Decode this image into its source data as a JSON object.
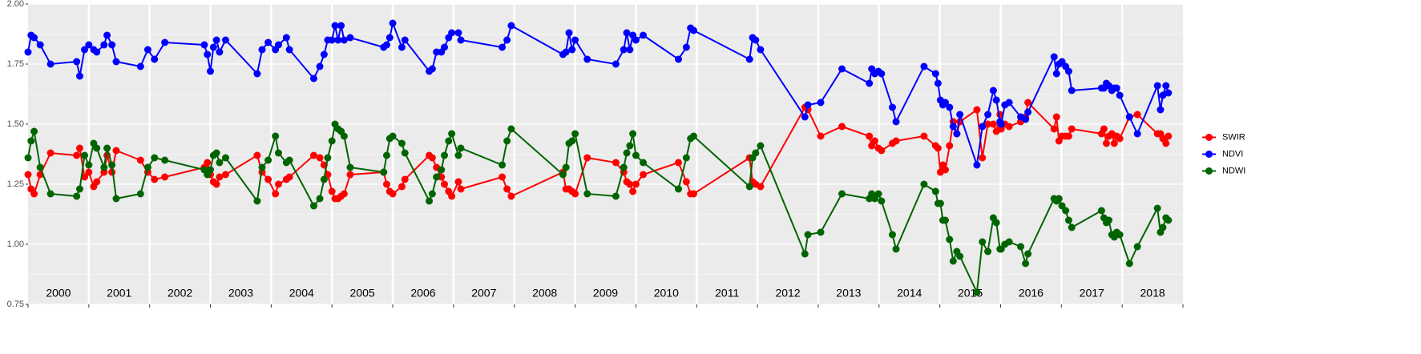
{
  "chart_data": {
    "type": "line",
    "x": [
      2000.0,
      2000.05,
      2000.1,
      2000.2,
      2000.37,
      2000.8,
      2000.85,
      2000.93,
      2001.0,
      2001.08,
      2001.13,
      2001.25,
      2001.3,
      2001.38,
      2001.45,
      2001.85,
      2001.97,
      2002.08,
      2002.25,
      2002.9,
      2002.95,
      2003.0,
      2003.05,
      2003.1,
      2003.15,
      2003.25,
      2003.77,
      2003.85,
      2003.95,
      2004.07,
      2004.12,
      2004.25,
      2004.3,
      2004.7,
      2004.8,
      2004.87,
      2004.93,
      2005.0,
      2005.05,
      2005.1,
      2005.15,
      2005.2,
      2005.3,
      2005.85,
      2005.9,
      2005.95,
      2006.0,
      2006.15,
      2006.2,
      2006.6,
      2006.65,
      2006.72,
      2006.8,
      2006.85,
      2006.92,
      2006.97,
      2007.08,
      2007.12,
      2007.8,
      2007.88,
      2007.95,
      2008.8,
      2008.85,
      2008.9,
      2008.95,
      2009.0,
      2009.2,
      2009.67,
      2009.8,
      2009.85,
      2009.9,
      2009.95,
      2010.0,
      2010.12,
      2010.7,
      2010.83,
      2010.9,
      2010.95,
      2011.87,
      2011.92,
      2011.97,
      2012.05,
      2012.78,
      2012.83,
      2013.04,
      2013.39,
      2013.84,
      2013.88,
      2013.93,
      2013.99,
      2014.04,
      2014.22,
      2014.28,
      2014.74,
      2014.93,
      2014.97,
      2015.01,
      2015.05,
      2015.09,
      2015.16,
      2015.22,
      2015.28,
      2015.33,
      2015.61,
      2015.7,
      2015.79,
      2015.88,
      2015.93,
      2015.99,
      2016.01,
      2016.07,
      2016.14,
      2016.33,
      2016.41,
      2016.45,
      2016.88,
      2016.92,
      2016.96,
      2017.01,
      2017.07,
      2017.12,
      2017.17,
      2017.66,
      2017.7,
      2017.74,
      2017.78,
      2017.83,
      2017.87,
      2017.91,
      2017.96,
      2018.12,
      2018.25,
      2018.58,
      2018.63,
      2018.67,
      2018.72,
      2018.76
    ],
    "series": [
      {
        "name": "SWIR",
        "color": "#ff0000",
        "values": [
          1.29,
          1.23,
          1.21,
          1.29,
          1.38,
          1.37,
          1.4,
          1.28,
          1.3,
          1.24,
          1.26,
          1.3,
          1.37,
          1.3,
          1.39,
          1.35,
          1.3,
          1.27,
          1.28,
          1.32,
          1.34,
          1.29,
          1.26,
          1.25,
          1.28,
          1.29,
          1.37,
          1.3,
          1.27,
          1.21,
          1.25,
          1.27,
          1.28,
          1.37,
          1.36,
          1.33,
          1.29,
          1.22,
          1.19,
          1.19,
          1.2,
          1.21,
          1.29,
          1.3,
          1.25,
          1.22,
          1.21,
          1.24,
          1.27,
          1.37,
          1.36,
          1.32,
          1.28,
          1.25,
          1.22,
          1.2,
          1.26,
          1.23,
          1.28,
          1.23,
          1.2,
          1.3,
          1.23,
          1.23,
          1.22,
          1.21,
          1.36,
          1.34,
          1.3,
          1.26,
          1.25,
          1.22,
          1.25,
          1.29,
          1.34,
          1.26,
          1.21,
          1.21,
          1.36,
          1.26,
          1.25,
          1.24,
          1.57,
          1.56,
          1.45,
          1.49,
          1.45,
          1.41,
          1.43,
          1.4,
          1.39,
          1.42,
          1.43,
          1.45,
          1.41,
          1.4,
          1.3,
          1.33,
          1.31,
          1.41,
          1.51,
          1.46,
          1.51,
          1.56,
          1.36,
          1.5,
          1.5,
          1.47,
          1.54,
          1.48,
          1.5,
          1.49,
          1.51,
          1.53,
          1.59,
          1.48,
          1.53,
          1.43,
          1.45,
          1.45,
          1.45,
          1.48,
          1.46,
          1.48,
          1.42,
          1.45,
          1.46,
          1.42,
          1.45,
          1.44,
          1.53,
          1.54,
          1.46,
          1.46,
          1.44,
          1.42,
          1.45
        ]
      },
      {
        "name": "NDVI",
        "color": "#0000ff",
        "values": [
          1.8,
          1.87,
          1.86,
          1.83,
          1.75,
          1.76,
          1.7,
          1.81,
          1.83,
          1.81,
          1.8,
          1.83,
          1.87,
          1.83,
          1.76,
          1.74,
          1.81,
          1.77,
          1.84,
          1.83,
          1.79,
          1.72,
          1.82,
          1.85,
          1.8,
          1.85,
          1.71,
          1.81,
          1.84,
          1.81,
          1.83,
          1.86,
          1.81,
          1.69,
          1.74,
          1.79,
          1.85,
          1.85,
          1.91,
          1.85,
          1.91,
          1.85,
          1.86,
          1.82,
          1.83,
          1.86,
          1.92,
          1.82,
          1.85,
          1.72,
          1.73,
          1.8,
          1.8,
          1.82,
          1.86,
          1.88,
          1.88,
          1.85,
          1.82,
          1.85,
          1.91,
          1.79,
          1.8,
          1.88,
          1.81,
          1.85,
          1.77,
          1.75,
          1.81,
          1.88,
          1.81,
          1.87,
          1.85,
          1.87,
          1.77,
          1.82,
          1.9,
          1.89,
          1.77,
          1.86,
          1.85,
          1.81,
          1.53,
          1.58,
          1.59,
          1.73,
          1.67,
          1.73,
          1.71,
          1.72,
          1.71,
          1.57,
          1.51,
          1.74,
          1.71,
          1.67,
          1.6,
          1.58,
          1.59,
          1.57,
          1.49,
          1.46,
          1.54,
          1.33,
          1.49,
          1.54,
          1.64,
          1.6,
          1.51,
          1.5,
          1.58,
          1.59,
          1.53,
          1.52,
          1.55,
          1.78,
          1.71,
          1.75,
          1.76,
          1.74,
          1.72,
          1.64,
          1.65,
          1.65,
          1.67,
          1.66,
          1.64,
          1.65,
          1.65,
          1.62,
          1.53,
          1.46,
          1.66,
          1.56,
          1.62,
          1.66,
          1.63
        ]
      },
      {
        "name": "NDWI",
        "color": "#006400",
        "values": [
          1.36,
          1.43,
          1.47,
          1.32,
          1.21,
          1.2,
          1.23,
          1.37,
          1.33,
          1.42,
          1.4,
          1.32,
          1.4,
          1.33,
          1.19,
          1.21,
          1.32,
          1.36,
          1.35,
          1.31,
          1.29,
          1.31,
          1.37,
          1.38,
          1.34,
          1.36,
          1.18,
          1.32,
          1.35,
          1.45,
          1.38,
          1.34,
          1.35,
          1.16,
          1.19,
          1.27,
          1.36,
          1.43,
          1.5,
          1.48,
          1.47,
          1.45,
          1.32,
          1.3,
          1.37,
          1.44,
          1.45,
          1.42,
          1.38,
          1.18,
          1.21,
          1.28,
          1.31,
          1.37,
          1.43,
          1.46,
          1.37,
          1.4,
          1.33,
          1.43,
          1.48,
          1.29,
          1.32,
          1.42,
          1.43,
          1.46,
          1.21,
          1.2,
          1.32,
          1.38,
          1.41,
          1.46,
          1.37,
          1.34,
          1.23,
          1.36,
          1.44,
          1.45,
          1.24,
          1.36,
          1.38,
          1.41,
          0.96,
          1.04,
          1.05,
          1.21,
          1.19,
          1.21,
          1.19,
          1.21,
          1.18,
          1.04,
          0.98,
          1.25,
          1.22,
          1.17,
          1.17,
          1.1,
          1.1,
          1.02,
          0.93,
          0.97,
          0.95,
          0.8,
          1.01,
          0.97,
          1.11,
          1.09,
          0.98,
          0.98,
          1.0,
          1.01,
          0.99,
          0.92,
          0.96,
          1.19,
          1.18,
          1.19,
          1.16,
          1.14,
          1.1,
          1.07,
          1.14,
          1.11,
          1.09,
          1.1,
          1.04,
          1.03,
          1.05,
          1.04,
          0.92,
          0.99,
          1.15,
          1.05,
          1.07,
          1.11,
          1.1
        ]
      }
    ],
    "xlim": [
      2000,
      2019
    ],
    "xticks": [
      2000,
      2001,
      2002,
      2003,
      2004,
      2005,
      2006,
      2007,
      2008,
      2009,
      2010,
      2011,
      2012,
      2013,
      2014,
      2015,
      2016,
      2017,
      2018,
      2019
    ],
    "period_labels": [
      "2000",
      "2001",
      "2002",
      "2003",
      "2004",
      "2005",
      "2006",
      "2007",
      "2008",
      "2009",
      "2010",
      "2011",
      "2012",
      "2013",
      "2014",
      "2015",
      "2016",
      "2017",
      "2018"
    ],
    "ylim": [
      0.75,
      2.0
    ],
    "yticks": [
      {
        "value": 0.75,
        "label": "0.75"
      },
      {
        "value": 1.0,
        "label": "1.00"
      },
      1.25,
      {
        "value": 1.5,
        "label": "1.50"
      },
      1.75,
      {
        "value": 2.0,
        "label": "2.00"
      }
    ],
    "grid": true,
    "legend": "right"
  }
}
